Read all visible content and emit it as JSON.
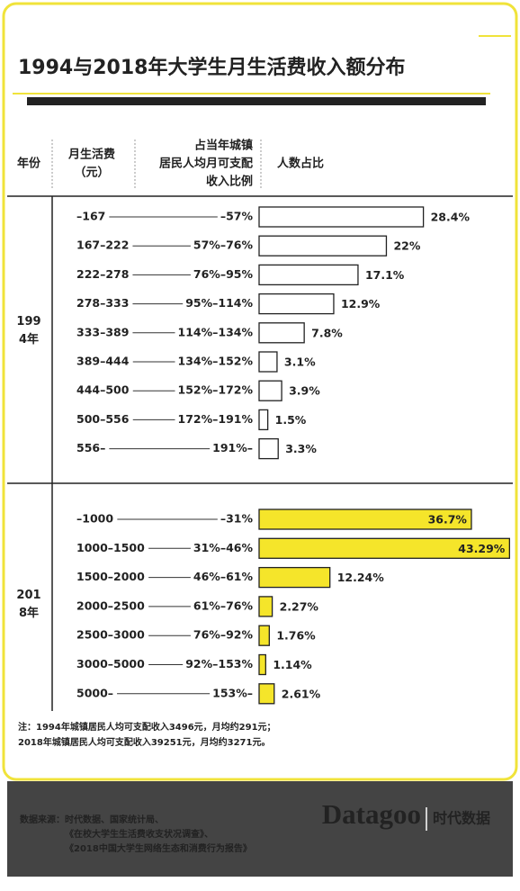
{
  "header": {
    "title": "1994与2018年大学生月生活费收入额分布",
    "columns": [
      [
        "年份"
      ],
      [
        "月生活费",
        "（元）"
      ],
      [
        "占当年城镇",
        "居民人均月可支配",
        "收入比例"
      ],
      [
        "人数占比"
      ]
    ]
  },
  "chart_data": [
    {
      "type": "bar",
      "group_label": "1994年",
      "categories": [
        "–167",
        "167–222",
        "222–278",
        "278–333",
        "333–389",
        "389–444",
        "444–500",
        "500–556",
        "556–"
      ],
      "ratios": [
        "–57%",
        "57%–76%",
        "76%–95%",
        "95%–114%",
        "114%–134%",
        "134%–152%",
        "152%–172%",
        "172%–191%",
        "191%–"
      ],
      "values": [
        28.4,
        22,
        17.1,
        12.9,
        7.8,
        3.1,
        3.9,
        1.5,
        3.3
      ],
      "value_labels": [
        "28.4%",
        "22%",
        "17.1%",
        "12.9%",
        "7.8%",
        "3.1%",
        "3.9%",
        "1.5%",
        "3.3%"
      ],
      "color": "#ffffff"
    },
    {
      "type": "bar",
      "group_label": "2018年",
      "categories": [
        "–1000",
        "1000–1500",
        "1500–2000",
        "2000–2500",
        "2500–3000",
        "3000–5000",
        "5000–"
      ],
      "ratios": [
        "–31%",
        "31%–46%",
        "46%–61%",
        "61%–76%",
        "76%–92%",
        "92%–153%",
        "153%–"
      ],
      "values": [
        36.7,
        43.29,
        12.24,
        2.27,
        1.76,
        1.14,
        2.61
      ],
      "value_labels": [
        "36.7%",
        "43.29%",
        "12.24%",
        "2.27%",
        "1.76%",
        "1.14%",
        "2.61%"
      ],
      "color": "#f5e52a"
    }
  ],
  "notes": {
    "label": "注：",
    "lines": [
      "1994年城镇居民人均可支配收入3496元，月均约291元；",
      "2018年城镇居民人均可支配收入39251元，月均约3271元。"
    ]
  },
  "footer": {
    "source_label": "数据来源：",
    "source_lines": [
      "时代数据、国家统计局、",
      "《在校大学生生活费收支状况调查》、",
      "《2018中国大学生网络生态和消费行为报告》"
    ],
    "logo": "Datagoo",
    "logo_cn": "时代数据"
  }
}
